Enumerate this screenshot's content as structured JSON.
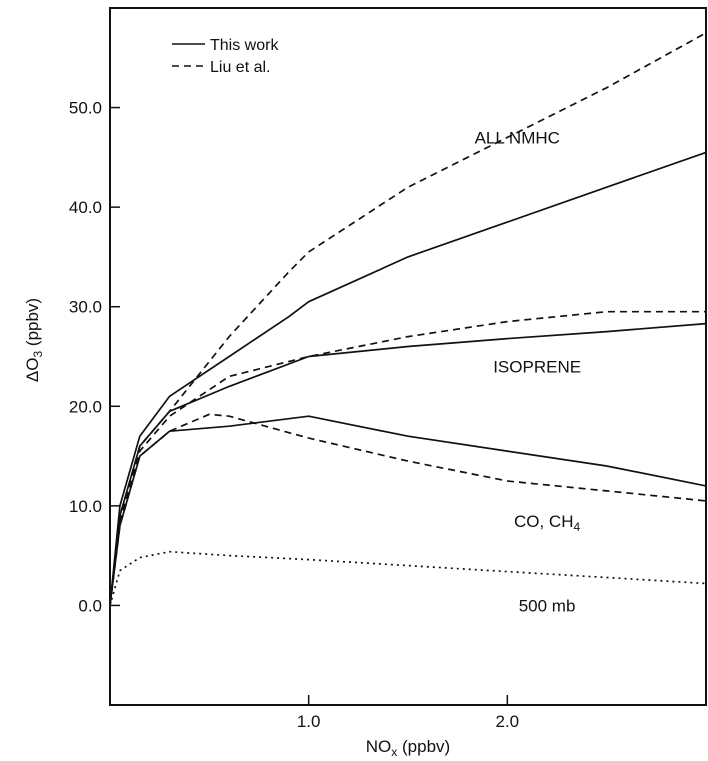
{
  "chart_data": {
    "type": "line",
    "title": "",
    "xlabel": {
      "base": "NO",
      "sub": "x",
      "rest": " (ppbv)"
    },
    "ylabel": {
      "pre": "ΔO",
      "sub": "3",
      "rest": " (ppbv)"
    },
    "xlim": [
      0,
      3
    ],
    "ylim": [
      -10,
      60
    ],
    "xticks": [
      1.0,
      2.0
    ],
    "xtick_labels": [
      "1.0",
      "2.0"
    ],
    "yticks": [
      0,
      10,
      20,
      30,
      40,
      50
    ],
    "ytick_labels": [
      "0.0",
      "10.0",
      "20.0",
      "30.0",
      "40.0",
      "50.0"
    ],
    "grid": false,
    "legend": {
      "position": "top-left",
      "entries": [
        {
          "label": "This work",
          "style": "solid"
        },
        {
          "label": "Liu et al.",
          "style": "dashed"
        }
      ]
    },
    "annotations": [
      {
        "text": "ALL NMHC",
        "x": 2.05,
        "y": 47
      },
      {
        "text": "ISOPRENE",
        "x": 2.15,
        "y": 24
      },
      {
        "text": "CO, CH",
        "sub": "4",
        "x": 2.2,
        "y": 8.5
      },
      {
        "text": "500 mb",
        "x": 2.2,
        "y": 0
      }
    ],
    "series": [
      {
        "group": "ALL NMHC",
        "style": "solid",
        "x": [
          0,
          0.05,
          0.15,
          0.3,
          0.6,
          0.9,
          1.0,
          1.5,
          2.0,
          2.5,
          3.0
        ],
        "y": [
          0,
          10,
          17,
          21,
          25,
          29,
          30.5,
          35,
          38.5,
          42,
          45.5
        ]
      },
      {
        "group": "ALL NMHC",
        "style": "dashed",
        "x": [
          0,
          0.05,
          0.15,
          0.3,
          0.6,
          0.9,
          1.0,
          1.5,
          2.0,
          2.5,
          3.0
        ],
        "y": [
          0,
          9,
          16,
          19.5,
          27,
          33.5,
          35.5,
          42,
          47,
          52,
          57.5
        ]
      },
      {
        "group": "ISOPRENE",
        "style": "solid",
        "x": [
          0,
          0.05,
          0.15,
          0.3,
          0.6,
          1.0,
          1.5,
          2.0,
          2.5,
          3.0
        ],
        "y": [
          0,
          9,
          16,
          19.5,
          22,
          25,
          26,
          26.8,
          27.5,
          28.3
        ]
      },
      {
        "group": "ISOPRENE",
        "style": "dashed",
        "x": [
          0,
          0.05,
          0.15,
          0.3,
          0.6,
          1.0,
          1.5,
          2.0,
          2.5,
          3.0
        ],
        "y": [
          0,
          8.5,
          15.5,
          19,
          23,
          25,
          27,
          28.5,
          29.5,
          29.5
        ]
      },
      {
        "group": "CO, CH4",
        "style": "solid",
        "x": [
          0,
          0.05,
          0.15,
          0.3,
          0.6,
          1.0,
          1.5,
          2.0,
          2.5,
          3.0
        ],
        "y": [
          0,
          8,
          15,
          17.5,
          18,
          19,
          17,
          15.5,
          14,
          12
        ]
      },
      {
        "group": "CO, CH4",
        "style": "dashed",
        "x": [
          0,
          0.05,
          0.15,
          0.3,
          0.5,
          0.6,
          1.0,
          1.5,
          2.0,
          2.5,
          3.0
        ],
        "y": [
          0,
          8,
          15,
          17.5,
          19.2,
          19,
          16.8,
          14.5,
          12.5,
          11.5,
          10.5
        ]
      },
      {
        "group": "500 mb",
        "style": "dotted",
        "x": [
          0,
          0.05,
          0.15,
          0.3,
          0.6,
          1.0,
          1.5,
          2.0,
          2.5,
          3.0
        ],
        "y": [
          0,
          3.5,
          4.8,
          5.4,
          5,
          4.6,
          4,
          3.4,
          2.8,
          2.2
        ]
      }
    ]
  }
}
